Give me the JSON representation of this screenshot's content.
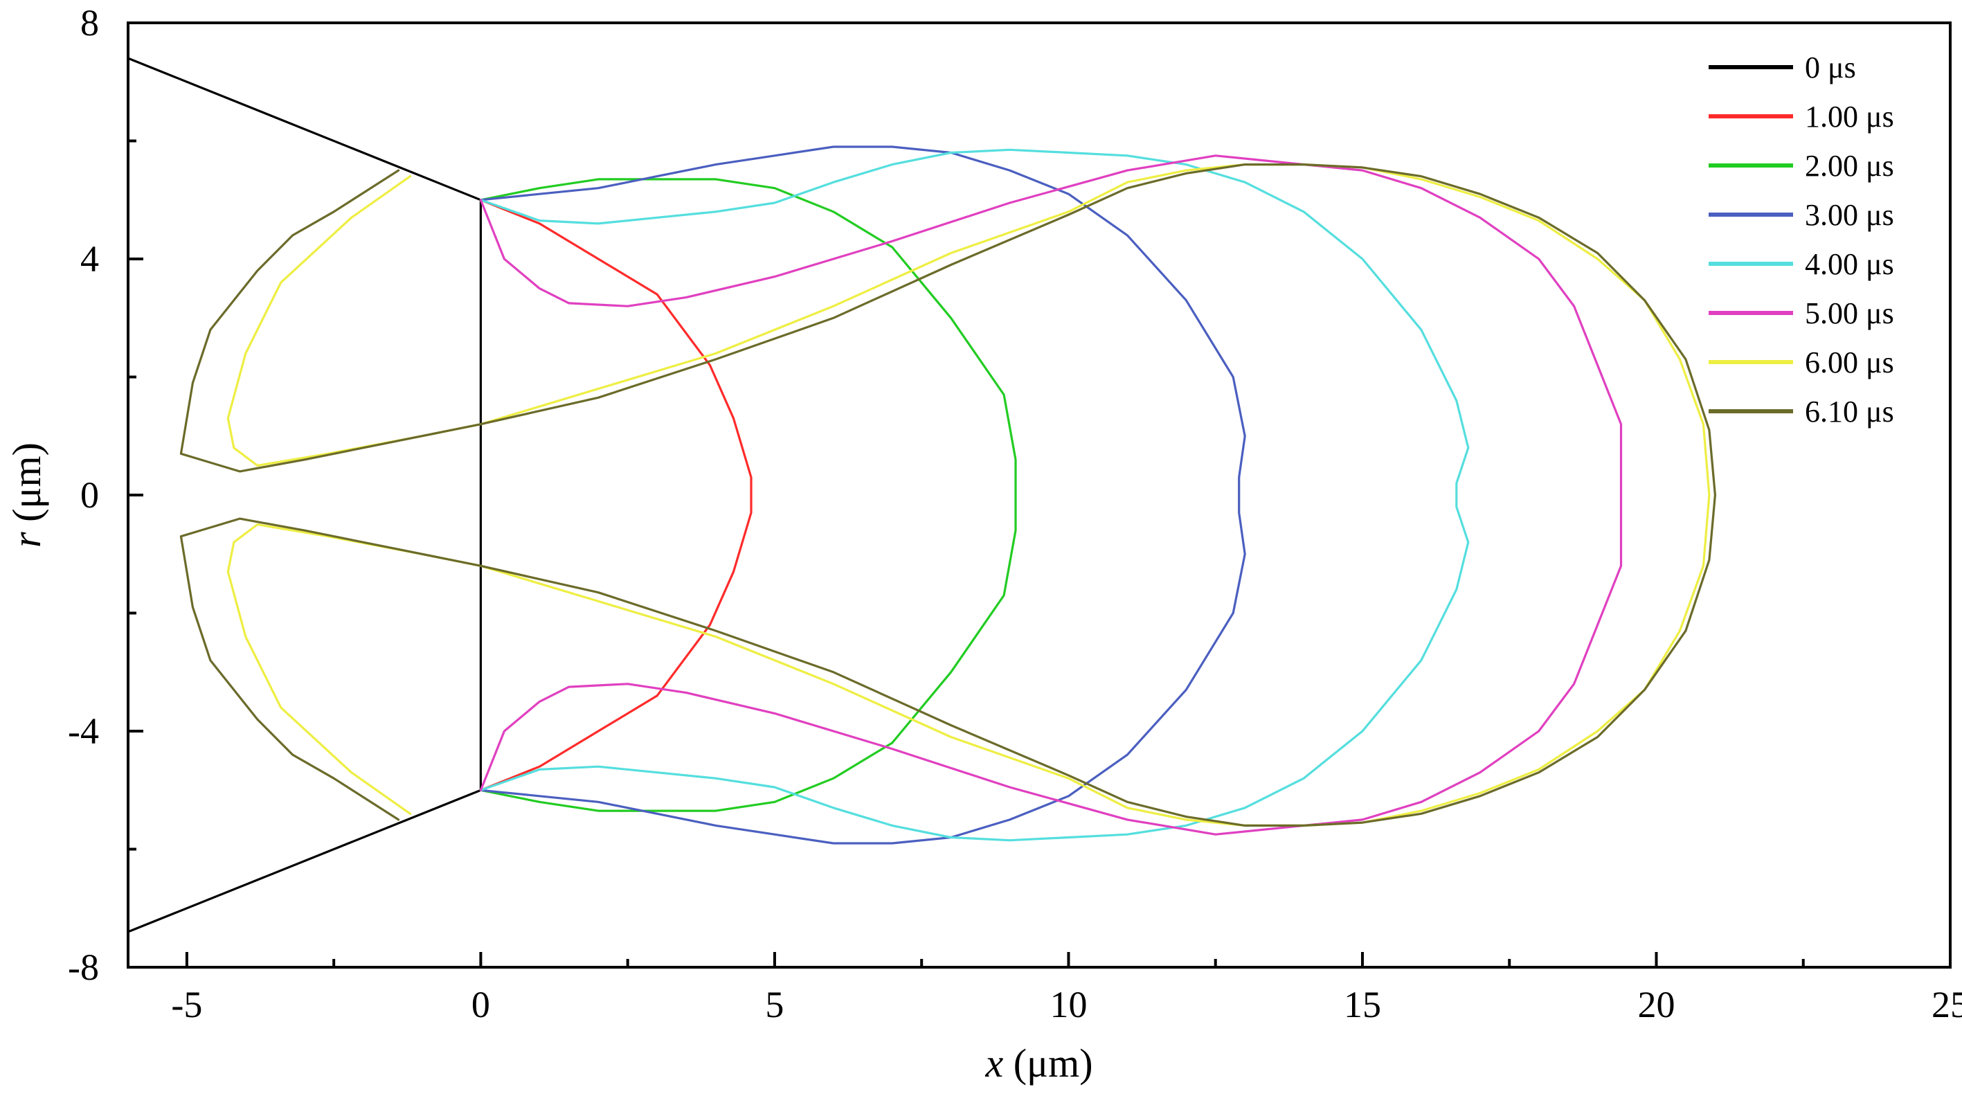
{
  "chart_data": {
    "type": "line",
    "xlabel": {
      "italic": "x",
      "rest": " (μm)"
    },
    "ylabel": {
      "italic": "r",
      "rest": " (μm)"
    },
    "xlim": [
      -6,
      25
    ],
    "ylim": [
      -8,
      8
    ],
    "x_ticks": [
      "-5",
      "0",
      "5",
      "10",
      "15",
      "20",
      "25"
    ],
    "x_tick_values": [
      -5,
      0,
      5,
      10,
      15,
      20,
      25
    ],
    "y_ticks": [
      "8",
      "4",
      "0",
      "-4",
      "-8"
    ],
    "y_tick_values": [
      8,
      4,
      0,
      -4,
      -8
    ],
    "grid": false,
    "legend_position": "top-right",
    "series": [
      {
        "name": "0 μs",
        "color": "#000000",
        "points": [
          [
            -6,
            7.4
          ],
          [
            0,
            5.0
          ],
          [
            0,
            -5.0
          ],
          [
            -6,
            -7.4
          ]
        ]
      },
      {
        "name": "1.00 μs",
        "color": "#ff2b2b",
        "points": [
          [
            0,
            5.0
          ],
          [
            1,
            4.6
          ],
          [
            2,
            4.0
          ],
          [
            3,
            3.4
          ],
          [
            3.9,
            2.2
          ],
          [
            4.3,
            1.3
          ],
          [
            4.6,
            0.3
          ],
          [
            4.6,
            0
          ],
          [
            4.6,
            -0.3
          ],
          [
            4.3,
            -1.3
          ],
          [
            3.9,
            -2.2
          ],
          [
            3,
            -3.4
          ],
          [
            2,
            -4.0
          ],
          [
            1,
            -4.6
          ],
          [
            0,
            -5.0
          ]
        ]
      },
      {
        "name": "2.00 μs",
        "color": "#22cc22",
        "points": [
          [
            0,
            5.0
          ],
          [
            1,
            5.2
          ],
          [
            2,
            5.35
          ],
          [
            3,
            5.35
          ],
          [
            4,
            5.35
          ],
          [
            5,
            5.2
          ],
          [
            6,
            4.8
          ],
          [
            7,
            4.2
          ],
          [
            8,
            3.0
          ],
          [
            8.9,
            1.7
          ],
          [
            9.1,
            0.6
          ],
          [
            9.1,
            0
          ],
          [
            9.1,
            -0.6
          ],
          [
            8.9,
            -1.7
          ],
          [
            8,
            -3.0
          ],
          [
            7,
            -4.2
          ],
          [
            6,
            -4.8
          ],
          [
            5,
            -5.2
          ],
          [
            4,
            -5.35
          ],
          [
            3,
            -5.35
          ],
          [
            2,
            -5.35
          ],
          [
            1,
            -5.2
          ],
          [
            0,
            -5.0
          ]
        ]
      },
      {
        "name": "3.00 μs",
        "color": "#4b5fc0",
        "points": [
          [
            0,
            5.0
          ],
          [
            1,
            5.1
          ],
          [
            2,
            5.2
          ],
          [
            3,
            5.4
          ],
          [
            4,
            5.6
          ],
          [
            5,
            5.75
          ],
          [
            6,
            5.9
          ],
          [
            7,
            5.9
          ],
          [
            8,
            5.8
          ],
          [
            9,
            5.5
          ],
          [
            10,
            5.1
          ],
          [
            11,
            4.4
          ],
          [
            12,
            3.3
          ],
          [
            12.8,
            2.0
          ],
          [
            13,
            1.0
          ],
          [
            12.9,
            0.3
          ],
          [
            12.9,
            0
          ],
          [
            12.9,
            -0.3
          ],
          [
            13,
            -1.0
          ],
          [
            12.8,
            -2.0
          ],
          [
            12,
            -3.3
          ],
          [
            11,
            -4.4
          ],
          [
            10,
            -5.1
          ],
          [
            9,
            -5.5
          ],
          [
            8,
            -5.8
          ],
          [
            7,
            -5.9
          ],
          [
            6,
            -5.9
          ],
          [
            5,
            -5.75
          ],
          [
            4,
            -5.6
          ],
          [
            3,
            -5.4
          ],
          [
            2,
            -5.2
          ],
          [
            1,
            -5.1
          ],
          [
            0,
            -5.0
          ]
        ]
      },
      {
        "name": "4.00 μs",
        "color": "#55dede",
        "points": [
          [
            0,
            5.0
          ],
          [
            1,
            4.65
          ],
          [
            2,
            4.6
          ],
          [
            3,
            4.7
          ],
          [
            4,
            4.8
          ],
          [
            5,
            4.95
          ],
          [
            6,
            5.3
          ],
          [
            7,
            5.6
          ],
          [
            8,
            5.8
          ],
          [
            9,
            5.85
          ],
          [
            10,
            5.8
          ],
          [
            11,
            5.75
          ],
          [
            12,
            5.6
          ],
          [
            13,
            5.3
          ],
          [
            14,
            4.8
          ],
          [
            15,
            4.0
          ],
          [
            16,
            2.8
          ],
          [
            16.6,
            1.6
          ],
          [
            16.8,
            0.8
          ],
          [
            16.6,
            0.2
          ],
          [
            16.6,
            0
          ],
          [
            16.6,
            -0.2
          ],
          [
            16.8,
            -0.8
          ],
          [
            16.6,
            -1.6
          ],
          [
            16,
            -2.8
          ],
          [
            15,
            -4.0
          ],
          [
            14,
            -4.8
          ],
          [
            13,
            -5.3
          ],
          [
            12,
            -5.6
          ],
          [
            11,
            -5.75
          ],
          [
            10,
            -5.8
          ],
          [
            9,
            -5.85
          ],
          [
            8,
            -5.8
          ],
          [
            7,
            -5.6
          ],
          [
            6,
            -5.3
          ],
          [
            5,
            -4.95
          ],
          [
            4,
            -4.8
          ],
          [
            3,
            -4.7
          ],
          [
            2,
            -4.6
          ],
          [
            1,
            -4.65
          ],
          [
            0,
            -5.0
          ]
        ]
      },
      {
        "name": "5.00 μs",
        "color": "#e040c0",
        "points": [
          [
            0,
            5.0
          ],
          [
            0.4,
            4.0
          ],
          [
            1,
            3.5
          ],
          [
            1.5,
            3.25
          ],
          [
            2.5,
            3.2
          ],
          [
            3.5,
            3.35
          ],
          [
            5,
            3.7
          ],
          [
            7,
            4.3
          ],
          [
            9,
            4.95
          ],
          [
            11,
            5.5
          ],
          [
            12.5,
            5.75
          ],
          [
            14,
            5.6
          ],
          [
            15,
            5.5
          ],
          [
            16,
            5.2
          ],
          [
            17,
            4.7
          ],
          [
            18,
            4.0
          ],
          [
            18.6,
            3.2
          ],
          [
            19,
            2.2
          ],
          [
            19.4,
            1.2
          ],
          [
            19.4,
            0
          ],
          [
            19.4,
            -1.2
          ],
          [
            19,
            -2.2
          ],
          [
            18.6,
            -3.2
          ],
          [
            18,
            -4.0
          ],
          [
            17,
            -4.7
          ],
          [
            16,
            -5.2
          ],
          [
            15,
            -5.5
          ],
          [
            14,
            -5.6
          ],
          [
            12.5,
            -5.75
          ],
          [
            11,
            -5.5
          ],
          [
            9,
            -4.95
          ],
          [
            7,
            -4.3
          ],
          [
            5,
            -3.7
          ],
          [
            3.5,
            -3.35
          ],
          [
            2.5,
            -3.2
          ],
          [
            1.5,
            -3.25
          ],
          [
            1,
            -3.5
          ],
          [
            0.4,
            -4.0
          ],
          [
            0,
            -5.0
          ]
        ]
      },
      {
        "name": "6.00 μs",
        "color": "#eeee44",
        "points": [
          [
            -1.2,
            5.4
          ],
          [
            -2.2,
            4.7
          ],
          [
            -3.4,
            3.6
          ],
          [
            -4.0,
            2.4
          ],
          [
            -4.3,
            1.3
          ],
          [
            -4.2,
            0.8
          ],
          [
            -3.8,
            0.5
          ],
          [
            -2.6,
            0.7
          ],
          [
            -1,
            1.0
          ],
          [
            0,
            1.2
          ],
          [
            2,
            1.8
          ],
          [
            4,
            2.4
          ],
          [
            6,
            3.2
          ],
          [
            8,
            4.1
          ],
          [
            10,
            4.8
          ],
          [
            11,
            5.3
          ],
          [
            12,
            5.5
          ],
          [
            13,
            5.6
          ],
          [
            14,
            5.6
          ],
          [
            15,
            5.55
          ],
          [
            16,
            5.35
          ],
          [
            17,
            5.05
          ],
          [
            18,
            4.65
          ],
          [
            19,
            4.0
          ],
          [
            19.8,
            3.3
          ],
          [
            20.4,
            2.3
          ],
          [
            20.8,
            1.2
          ],
          [
            20.9,
            0
          ],
          [
            20.8,
            -1.2
          ],
          [
            20.4,
            -2.3
          ],
          [
            19.8,
            -3.3
          ],
          [
            19,
            -4.0
          ],
          [
            18,
            -4.65
          ],
          [
            17,
            -5.05
          ],
          [
            16,
            -5.35
          ],
          [
            15,
            -5.55
          ],
          [
            14,
            -5.6
          ],
          [
            13,
            -5.6
          ],
          [
            12,
            -5.5
          ],
          [
            11,
            -5.3
          ],
          [
            10,
            -4.8
          ],
          [
            8,
            -4.1
          ],
          [
            6,
            -3.2
          ],
          [
            4,
            -2.4
          ],
          [
            2,
            -1.8
          ],
          [
            0,
            -1.2
          ],
          [
            -1,
            -1.0
          ],
          [
            -2.6,
            -0.7
          ],
          [
            -3.8,
            -0.5
          ],
          [
            -4.2,
            -0.8
          ],
          [
            -4.3,
            -1.3
          ],
          [
            -4.0,
            -2.4
          ],
          [
            -3.4,
            -3.6
          ],
          [
            -2.2,
            -4.7
          ],
          [
            -1.2,
            -5.4
          ]
        ]
      },
      {
        "name": "6.10 μs",
        "color": "#6b6b2a",
        "points": [
          [
            -1.4,
            5.5
          ],
          [
            -2.5,
            4.8
          ],
          [
            -3.2,
            4.4
          ],
          [
            -3.8,
            3.8
          ],
          [
            -4.6,
            2.8
          ],
          [
            -4.9,
            1.9
          ],
          [
            -5.1,
            0.7
          ],
          [
            -4.6,
            0.55
          ],
          [
            -4.1,
            0.4
          ],
          [
            -3,
            0.6
          ],
          [
            -1.5,
            0.9
          ],
          [
            0,
            1.2
          ],
          [
            2,
            1.65
          ],
          [
            4,
            2.3
          ],
          [
            6,
            3.0
          ],
          [
            8,
            3.9
          ],
          [
            10,
            4.75
          ],
          [
            11,
            5.2
          ],
          [
            12,
            5.45
          ],
          [
            13,
            5.6
          ],
          [
            14,
            5.6
          ],
          [
            15,
            5.55
          ],
          [
            16,
            5.4
          ],
          [
            17,
            5.1
          ],
          [
            18,
            4.7
          ],
          [
            19,
            4.1
          ],
          [
            19.8,
            3.3
          ],
          [
            20.5,
            2.3
          ],
          [
            20.9,
            1.1
          ],
          [
            21,
            0
          ],
          [
            20.9,
            -1.1
          ],
          [
            20.5,
            -2.3
          ],
          [
            19.8,
            -3.3
          ],
          [
            19,
            -4.1
          ],
          [
            18,
            -4.7
          ],
          [
            17,
            -5.1
          ],
          [
            16,
            -5.4
          ],
          [
            15,
            -5.55
          ],
          [
            14,
            -5.6
          ],
          [
            13,
            -5.6
          ],
          [
            12,
            -5.45
          ],
          [
            11,
            -5.2
          ],
          [
            10,
            -4.75
          ],
          [
            8,
            -3.9
          ],
          [
            6,
            -3.0
          ],
          [
            4,
            -2.3
          ],
          [
            2,
            -1.65
          ],
          [
            0,
            -1.2
          ],
          [
            -1.5,
            -0.9
          ],
          [
            -3,
            -0.6
          ],
          [
            -4.1,
            -0.4
          ],
          [
            -4.6,
            -0.55
          ],
          [
            -5.1,
            -0.7
          ],
          [
            -4.9,
            -1.9
          ],
          [
            -4.6,
            -2.8
          ],
          [
            -3.8,
            -3.8
          ],
          [
            -3.2,
            -4.4
          ],
          [
            -2.5,
            -4.8
          ],
          [
            -1.4,
            -5.5
          ]
        ]
      }
    ]
  }
}
